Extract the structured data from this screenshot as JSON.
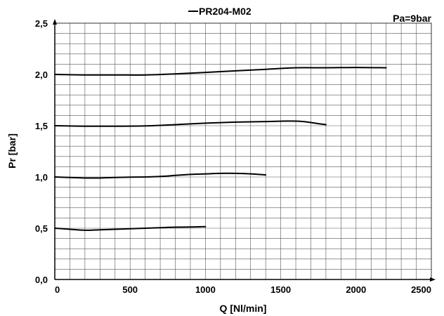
{
  "chart_data": {
    "type": "line",
    "title": "",
    "legend": {
      "label": "PR204-M02",
      "placement": "top-center"
    },
    "annotation": "Pa=9bar",
    "xlabel": "Q [Nl/min]",
    "ylabel": "Pr [bar]",
    "xlim": [
      0,
      2500
    ],
    "ylim": [
      0,
      2.5
    ],
    "x_ticks": [
      0,
      500,
      1000,
      1500,
      2000,
      2500
    ],
    "x_tick_labels": [
      "0",
      "500",
      "1000",
      "1500",
      "2000",
      "2500"
    ],
    "y_ticks": [
      0,
      0.5,
      1.0,
      1.5,
      2.0,
      2.5
    ],
    "y_tick_labels": [
      "0,0",
      "0,5",
      "1,0",
      "1,5",
      "2,0",
      "2,5"
    ],
    "grid": true,
    "x_grid_step": 100,
    "y_grid_step": 0.1,
    "series": [
      {
        "x": [
          0,
          100,
          200,
          300,
          400,
          500,
          600,
          700,
          800,
          900,
          1000
        ],
        "y": [
          0.5,
          0.49,
          0.48,
          0.485,
          0.49,
          0.495,
          0.5,
          0.505,
          0.51,
          0.512,
          0.515
        ]
      },
      {
        "x": [
          0,
          100,
          200,
          300,
          400,
          500,
          600,
          700,
          800,
          900,
          1000,
          1100,
          1200,
          1300,
          1400
        ],
        "y": [
          1.0,
          0.995,
          0.99,
          0.99,
          0.995,
          0.998,
          1.0,
          1.005,
          1.015,
          1.025,
          1.03,
          1.035,
          1.035,
          1.03,
          1.02
        ]
      },
      {
        "x": [
          0,
          200,
          400,
          600,
          800,
          1000,
          1200,
          1400,
          1550,
          1650,
          1750,
          1800
        ],
        "y": [
          1.5,
          1.495,
          1.495,
          1.498,
          1.51,
          1.525,
          1.535,
          1.54,
          1.545,
          1.54,
          1.52,
          1.51
        ]
      },
      {
        "x": [
          0,
          200,
          400,
          600,
          800,
          1000,
          1200,
          1400,
          1600,
          1800,
          2000,
          2200
        ],
        "y": [
          2.0,
          1.995,
          1.995,
          1.995,
          2.005,
          2.02,
          2.035,
          2.05,
          2.065,
          2.065,
          2.068,
          2.065
        ]
      }
    ]
  }
}
